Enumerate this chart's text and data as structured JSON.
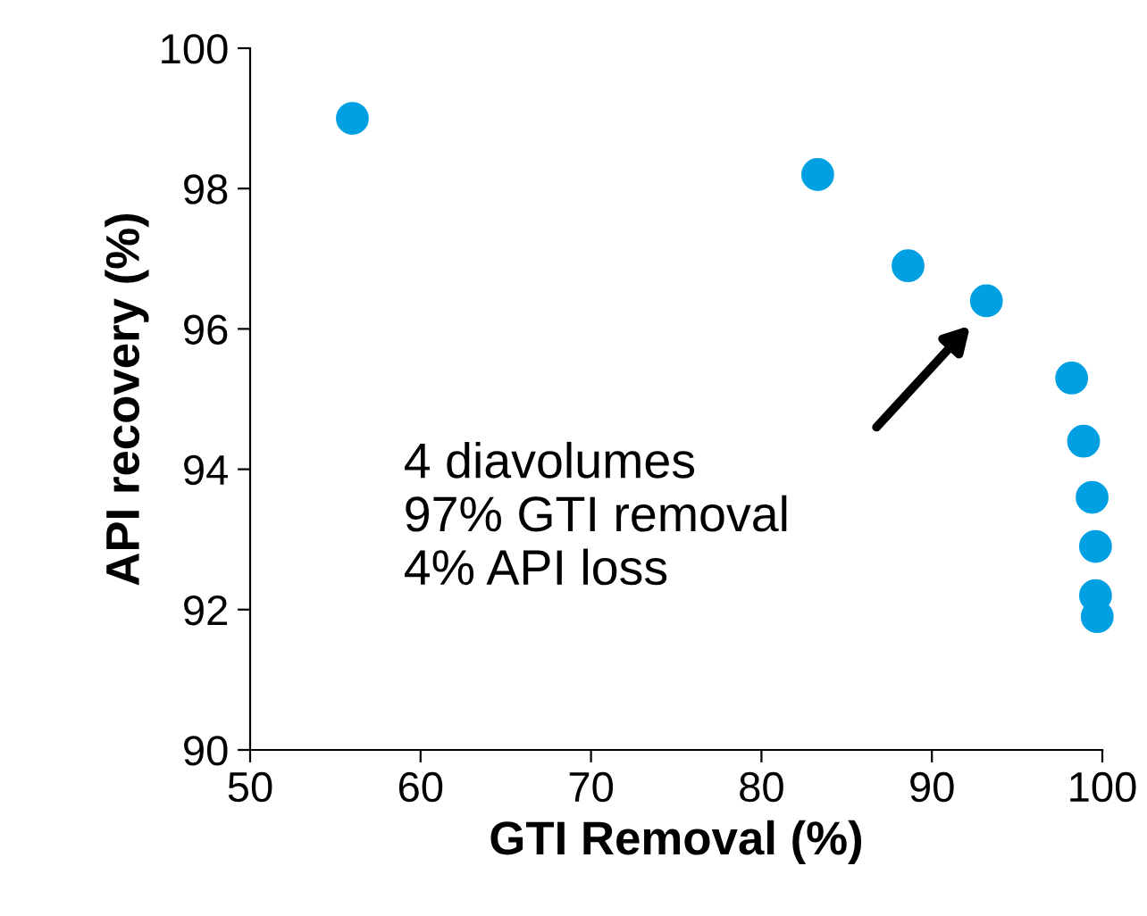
{
  "chart_data": {
    "type": "scatter",
    "xlabel": "GTI Removal (%)",
    "ylabel": "API recovery (%)",
    "x": [
      56,
      83.3,
      88.6,
      93.2,
      98.2,
      98.9,
      99.4,
      99.6,
      99.6,
      99.7
    ],
    "series": [
      {
        "color": "#00a0e3",
        "values": [
          99.0,
          98.2,
          96.9,
          96.4,
          95.3,
          94.4,
          93.6,
          92.9,
          92.2,
          91.9
        ]
      }
    ],
    "xlim": [
      50,
      100
    ],
    "xticks": [
      50,
      60,
      70,
      80,
      90,
      100
    ],
    "ylim": [
      90,
      100
    ],
    "yticks": [
      90,
      92,
      94,
      96,
      98,
      100
    ],
    "marker": "circle",
    "grid": false,
    "legend": false,
    "annotations": [
      "4 diavolumes\n97% GTI removal\n4% API loss"
    ]
  }
}
